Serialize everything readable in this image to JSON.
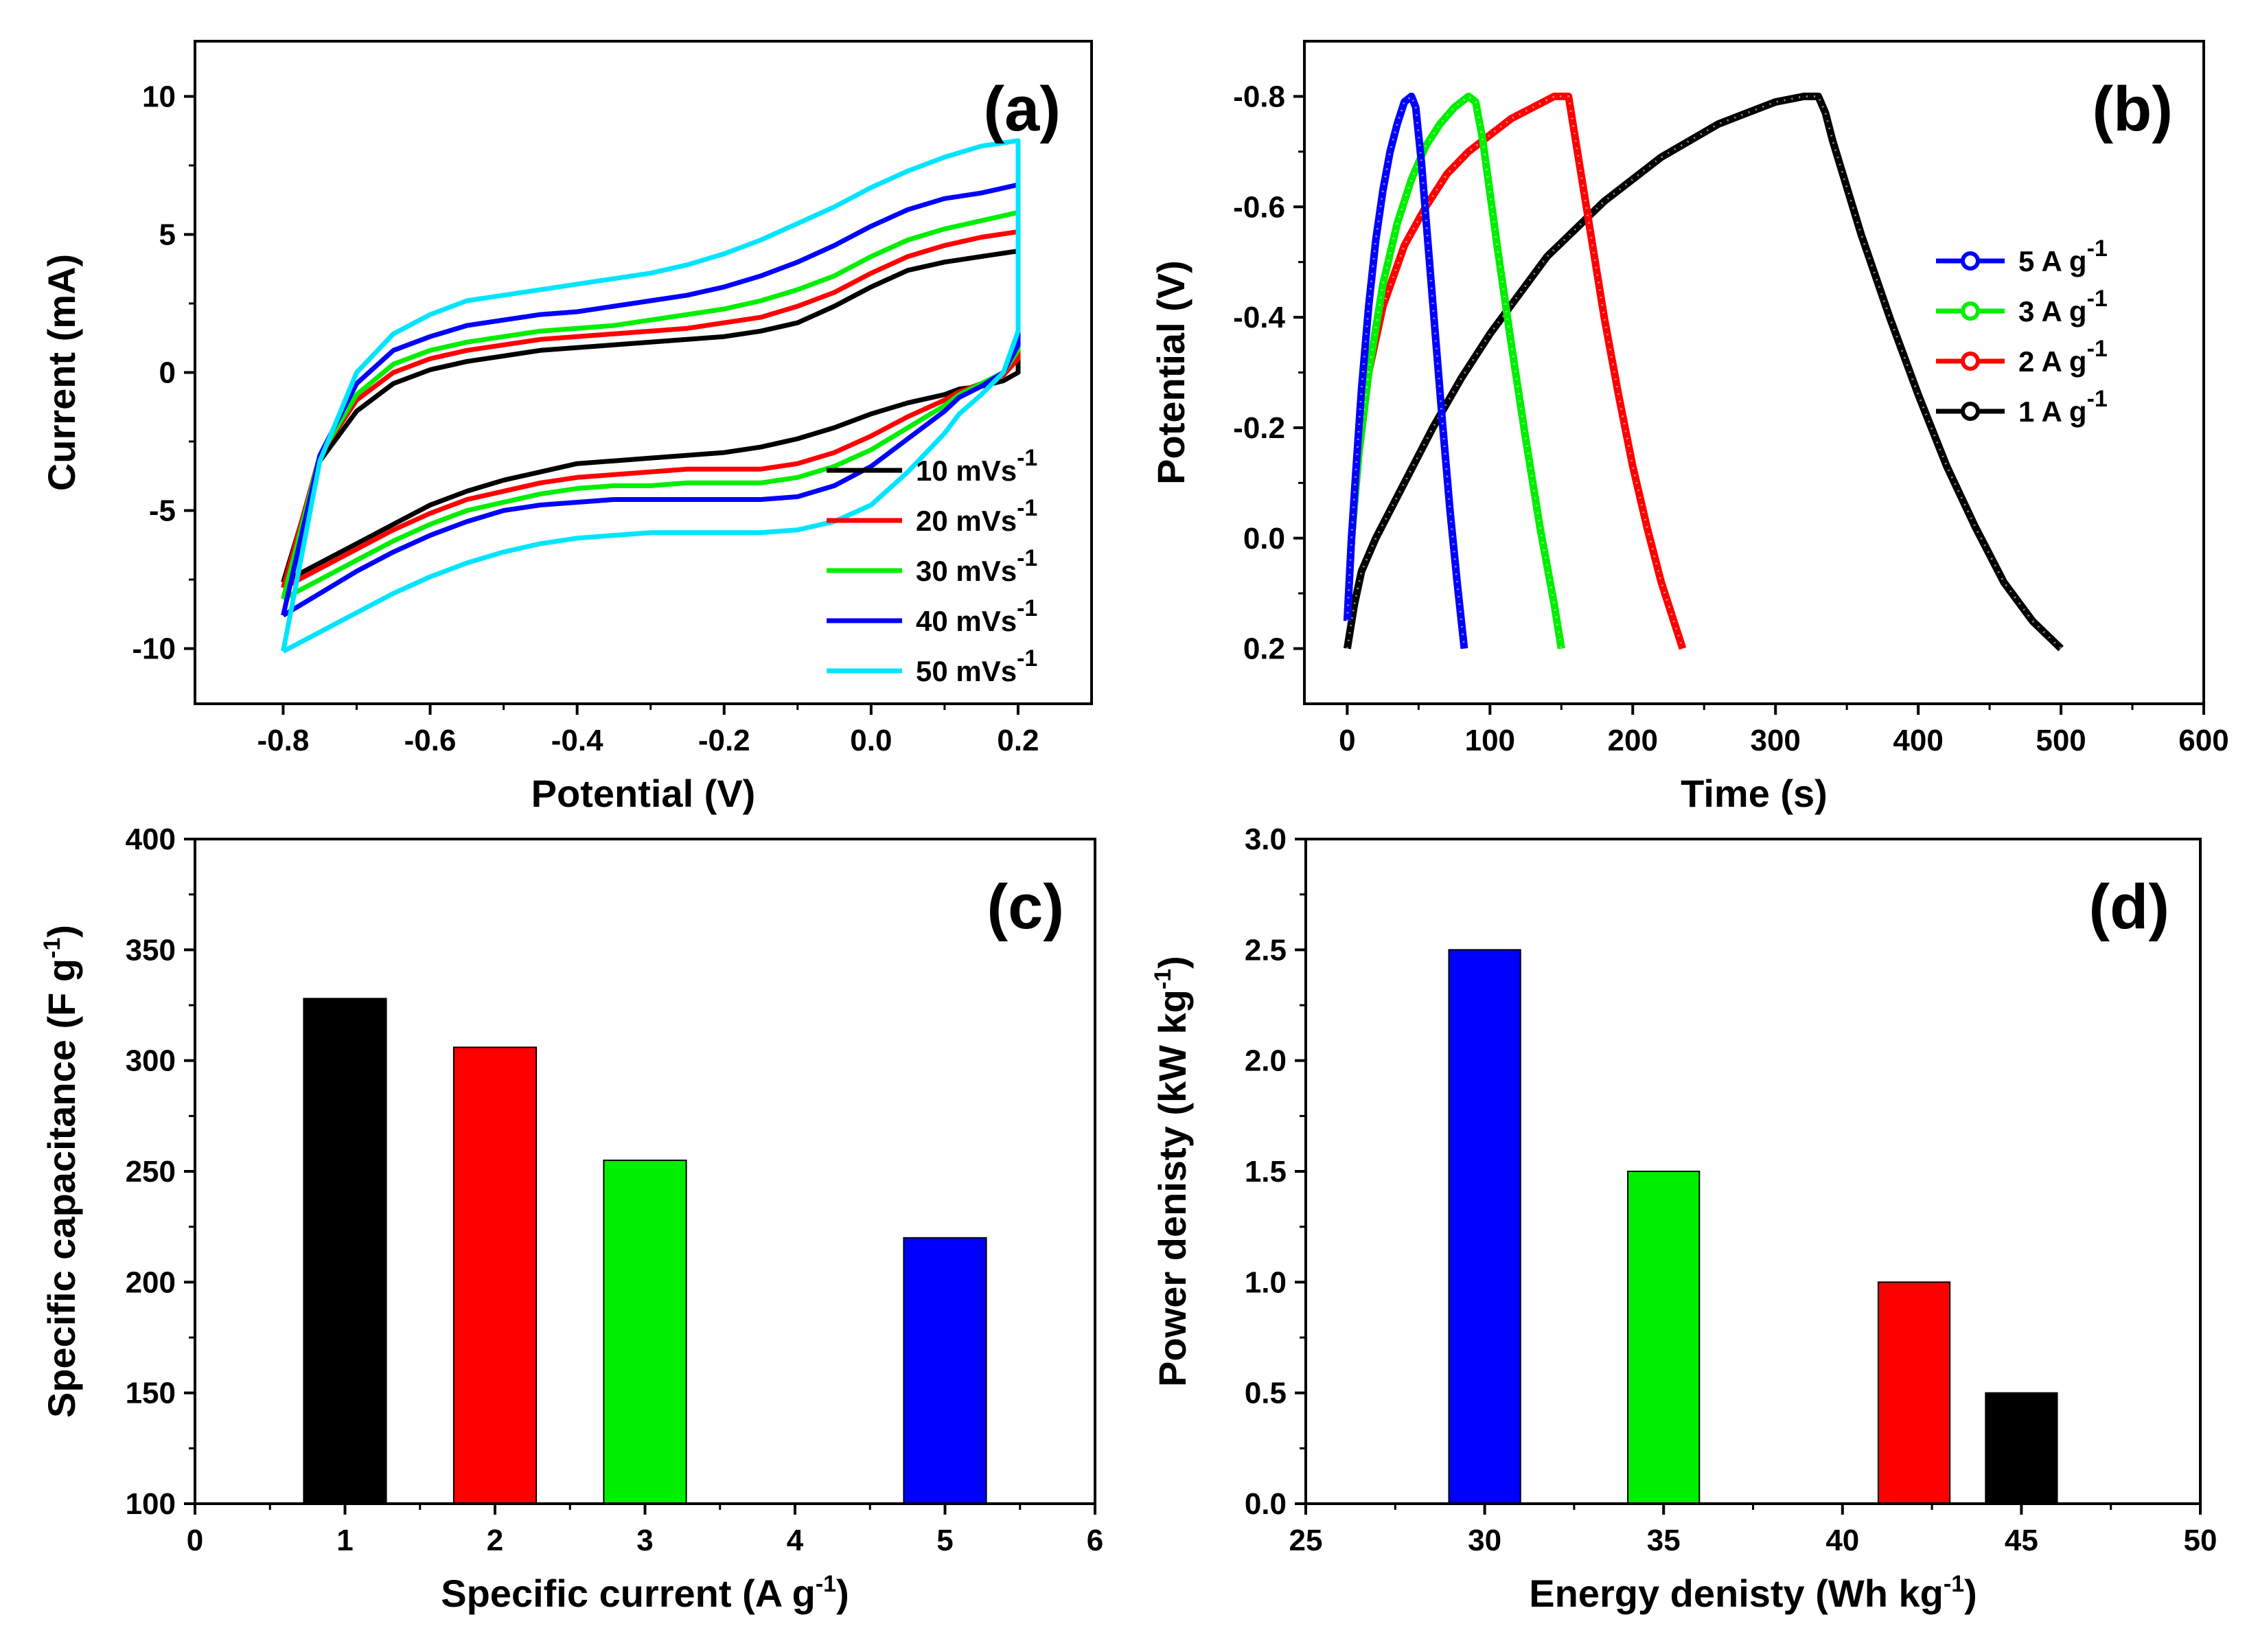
{
  "chart_data": [
    {
      "id": "a",
      "type": "line",
      "panel_label": "(a)",
      "xlabel": "Potential (V)",
      "ylabel": "Current (mA)",
      "xlim": [
        -0.92,
        0.3
      ],
      "ylim": [
        -12.0,
        12.0
      ],
      "xticks": [
        -0.8,
        -0.6,
        -0.4,
        -0.2,
        0.0,
        0.2
      ],
      "xtick_labels": [
        "-0.8",
        "-0.6",
        "-0.4",
        "-0.2",
        "0.0",
        "0.2"
      ],
      "yticks": [
        -10,
        -5,
        0,
        5,
        10
      ],
      "ytick_labels": [
        "-10",
        "-5",
        "0",
        "5",
        "10"
      ],
      "legend_position": "bottom-right",
      "series": [
        {
          "name": "10 mVs",
          "sup": "-1",
          "color": "#000000",
          "x": [
            -0.8,
            -0.75,
            -0.7,
            -0.65,
            -0.6,
            -0.55,
            -0.5,
            -0.45,
            -0.4,
            -0.35,
            -0.3,
            -0.25,
            -0.2,
            -0.15,
            -0.1,
            -0.05,
            0.0,
            0.05,
            0.1,
            0.15,
            0.2,
            0.2,
            0.2,
            0.18,
            0.15,
            0.12,
            0.1,
            0.05,
            0.0,
            -0.05,
            -0.1,
            -0.15,
            -0.2,
            -0.25,
            -0.3,
            -0.35,
            -0.4,
            -0.45,
            -0.5,
            -0.55,
            -0.6,
            -0.65,
            -0.7,
            -0.75,
            -0.8,
            -0.8
          ],
          "y": [
            -7.6,
            -3.2,
            -1.4,
            -0.4,
            0.1,
            0.4,
            0.6,
            0.8,
            0.9,
            1.0,
            1.1,
            1.2,
            1.3,
            1.5,
            1.8,
            2.4,
            3.1,
            3.7,
            4.0,
            4.2,
            4.4,
            2.0,
            0.0,
            -0.3,
            -0.5,
            -0.6,
            -0.8,
            -1.1,
            -1.5,
            -2.0,
            -2.4,
            -2.7,
            -2.9,
            -3.0,
            -3.1,
            -3.2,
            -3.3,
            -3.6,
            -3.9,
            -4.3,
            -4.8,
            -5.5,
            -6.2,
            -6.9,
            -7.6,
            -7.6
          ]
        },
        {
          "name": "20 mVs",
          "sup": "-1",
          "color": "#ff0000",
          "x": [
            -0.8,
            -0.75,
            -0.7,
            -0.65,
            -0.6,
            -0.55,
            -0.5,
            -0.45,
            -0.4,
            -0.35,
            -0.3,
            -0.25,
            -0.2,
            -0.15,
            -0.1,
            -0.05,
            0.0,
            0.05,
            0.1,
            0.15,
            0.2,
            0.2,
            0.2,
            0.18,
            0.15,
            0.12,
            0.1,
            0.05,
            0.0,
            -0.05,
            -0.1,
            -0.15,
            -0.2,
            -0.25,
            -0.3,
            -0.35,
            -0.4,
            -0.45,
            -0.5,
            -0.55,
            -0.6,
            -0.65,
            -0.7,
            -0.75,
            -0.8,
            -0.8
          ],
          "y": [
            -7.8,
            -3.0,
            -1.0,
            0.0,
            0.5,
            0.8,
            1.0,
            1.2,
            1.3,
            1.4,
            1.5,
            1.6,
            1.8,
            2.0,
            2.4,
            2.9,
            3.6,
            4.2,
            4.6,
            4.9,
            5.1,
            2.5,
            0.5,
            -0.1,
            -0.4,
            -0.7,
            -1.0,
            -1.6,
            -2.3,
            -2.9,
            -3.3,
            -3.5,
            -3.5,
            -3.5,
            -3.6,
            -3.7,
            -3.8,
            -4.0,
            -4.3,
            -4.6,
            -5.1,
            -5.7,
            -6.4,
            -7.1,
            -7.8,
            -7.8
          ]
        },
        {
          "name": "30 mVs",
          "sup": "-1",
          "color": "#00ee00",
          "x": [
            -0.8,
            -0.75,
            -0.7,
            -0.65,
            -0.6,
            -0.55,
            -0.5,
            -0.45,
            -0.4,
            -0.35,
            -0.3,
            -0.25,
            -0.2,
            -0.15,
            -0.1,
            -0.05,
            0.0,
            0.05,
            0.1,
            0.15,
            0.2,
            0.2,
            0.2,
            0.18,
            0.15,
            0.12,
            0.1,
            0.05,
            0.0,
            -0.05,
            -0.1,
            -0.15,
            -0.2,
            -0.25,
            -0.3,
            -0.35,
            -0.4,
            -0.45,
            -0.5,
            -0.55,
            -0.6,
            -0.65,
            -0.7,
            -0.75,
            -0.8,
            -0.8
          ],
          "y": [
            -8.2,
            -3.0,
            -0.8,
            0.3,
            0.8,
            1.1,
            1.3,
            1.5,
            1.6,
            1.7,
            1.9,
            2.1,
            2.3,
            2.6,
            3.0,
            3.5,
            4.2,
            4.8,
            5.2,
            5.5,
            5.8,
            3.0,
            0.8,
            0.0,
            -0.4,
            -0.8,
            -1.2,
            -2.0,
            -2.8,
            -3.4,
            -3.8,
            -4.0,
            -4.0,
            -4.0,
            -4.1,
            -4.1,
            -4.2,
            -4.4,
            -4.7,
            -5.0,
            -5.5,
            -6.1,
            -6.8,
            -7.5,
            -8.2,
            -8.2
          ]
        },
        {
          "name": "40 mVs",
          "sup": "-1",
          "color": "#0000ff",
          "x": [
            -0.8,
            -0.75,
            -0.7,
            -0.65,
            -0.6,
            -0.55,
            -0.5,
            -0.45,
            -0.4,
            -0.35,
            -0.3,
            -0.25,
            -0.2,
            -0.15,
            -0.1,
            -0.05,
            0.0,
            0.05,
            0.1,
            0.15,
            0.2,
            0.2,
            0.2,
            0.18,
            0.15,
            0.12,
            0.1,
            0.05,
            0.0,
            -0.05,
            -0.1,
            -0.15,
            -0.2,
            -0.25,
            -0.3,
            -0.35,
            -0.4,
            -0.45,
            -0.5,
            -0.55,
            -0.6,
            -0.65,
            -0.7,
            -0.75,
            -0.8,
            -0.8
          ],
          "y": [
            -8.8,
            -3.0,
            -0.4,
            0.8,
            1.3,
            1.7,
            1.9,
            2.1,
            2.2,
            2.4,
            2.6,
            2.8,
            3.1,
            3.5,
            4.0,
            4.6,
            5.3,
            5.9,
            6.3,
            6.5,
            6.8,
            3.6,
            1.0,
            0.0,
            -0.5,
            -0.9,
            -1.4,
            -2.4,
            -3.4,
            -4.1,
            -4.5,
            -4.6,
            -4.6,
            -4.6,
            -4.6,
            -4.6,
            -4.7,
            -4.8,
            -5.0,
            -5.4,
            -5.9,
            -6.5,
            -7.2,
            -8.0,
            -8.8,
            -8.8
          ]
        },
        {
          "name": "50 mVs",
          "sup": "-1",
          "color": "#00e5ff",
          "x": [
            -0.8,
            -0.75,
            -0.7,
            -0.65,
            -0.6,
            -0.55,
            -0.5,
            -0.45,
            -0.4,
            -0.35,
            -0.3,
            -0.25,
            -0.2,
            -0.15,
            -0.1,
            -0.05,
            0.0,
            0.05,
            0.1,
            0.15,
            0.2,
            0.2,
            0.2,
            0.18,
            0.15,
            0.12,
            0.1,
            0.05,
            0.0,
            -0.05,
            -0.1,
            -0.15,
            -0.2,
            -0.25,
            -0.3,
            -0.35,
            -0.4,
            -0.45,
            -0.5,
            -0.55,
            -0.6,
            -0.65,
            -0.7,
            -0.75,
            -0.8,
            -0.8
          ],
          "y": [
            -10.1,
            -3.2,
            0.0,
            1.4,
            2.1,
            2.6,
            2.8,
            3.0,
            3.2,
            3.4,
            3.6,
            3.9,
            4.3,
            4.8,
            5.4,
            6.0,
            6.7,
            7.3,
            7.8,
            8.2,
            8.4,
            4.5,
            1.5,
            0.0,
            -0.8,
            -1.5,
            -2.2,
            -3.6,
            -4.8,
            -5.4,
            -5.7,
            -5.8,
            -5.8,
            -5.8,
            -5.8,
            -5.9,
            -6.0,
            -6.2,
            -6.5,
            -6.9,
            -7.4,
            -8.0,
            -8.7,
            -9.4,
            -10.1,
            -10.1
          ]
        }
      ]
    },
    {
      "id": "b",
      "type": "line",
      "panel_label": "(b)",
      "xlabel": "Time (s)",
      "ylabel": "Potential (V)",
      "xlim": [
        -30,
        600
      ],
      "ylim": [
        0.3,
        -0.9
      ],
      "xticks": [
        0,
        100,
        200,
        300,
        400,
        500,
        600
      ],
      "xtick_labels": [
        "0",
        "100",
        "200",
        "300",
        "400",
        "500",
        "600"
      ],
      "yticks": [
        -0.8,
        -0.6,
        -0.4,
        -0.2,
        0.0,
        0.2
      ],
      "ytick_labels": [
        "-0.8",
        "-0.6",
        "-0.4",
        "-0.2",
        "0.0",
        "0.2"
      ],
      "legend_position": "top-right",
      "series": [
        {
          "name": "1 A g",
          "sup": "-1",
          "color": "#000000",
          "x": [
            0,
            5,
            10,
            20,
            40,
            60,
            80,
            100,
            120,
            140,
            160,
            180,
            200,
            220,
            240,
            260,
            280,
            300,
            320,
            330,
            335,
            340,
            360,
            380,
            400,
            420,
            440,
            460,
            480,
            500
          ],
          "y": [
            0.2,
            0.12,
            0.06,
            0.0,
            -0.1,
            -0.2,
            -0.29,
            -0.37,
            -0.44,
            -0.51,
            -0.56,
            -0.61,
            -0.65,
            -0.69,
            -0.72,
            -0.75,
            -0.77,
            -0.79,
            -0.8,
            -0.8,
            -0.77,
            -0.72,
            -0.55,
            -0.4,
            -0.26,
            -0.13,
            -0.02,
            0.08,
            0.15,
            0.2
          ]
        },
        {
          "name": "2 A g",
          "sup": "-1",
          "color": "#ff0000",
          "x": [
            0,
            3,
            8,
            15,
            25,
            40,
            55,
            70,
            85,
            100,
            115,
            130,
            145,
            155,
            160,
            170,
            180,
            190,
            200,
            210,
            220,
            230,
            235
          ],
          "y": [
            0.15,
            0.0,
            -0.15,
            -0.3,
            -0.42,
            -0.53,
            -0.6,
            -0.66,
            -0.7,
            -0.73,
            -0.76,
            -0.78,
            -0.8,
            -0.8,
            -0.72,
            -0.56,
            -0.4,
            -0.26,
            -0.13,
            -0.02,
            0.08,
            0.16,
            0.2
          ]
        },
        {
          "name": "3 A g",
          "sup": "-1",
          "color": "#00ee00",
          "x": [
            0,
            3,
            8,
            15,
            25,
            35,
            45,
            55,
            65,
            75,
            85,
            90,
            95,
            105,
            115,
            125,
            135,
            145,
            150
          ],
          "y": [
            0.15,
            0.0,
            -0.15,
            -0.3,
            -0.46,
            -0.57,
            -0.65,
            -0.71,
            -0.75,
            -0.78,
            -0.8,
            -0.79,
            -0.72,
            -0.53,
            -0.35,
            -0.18,
            -0.02,
            0.12,
            0.2
          ]
        },
        {
          "name": "5 A g",
          "sup": "-1",
          "color": "#0000ff",
          "x": [
            0,
            3,
            6,
            10,
            15,
            20,
            25,
            30,
            35,
            40,
            45,
            48,
            52,
            57,
            62,
            67,
            72,
            77,
            82
          ],
          "y": [
            0.15,
            0.0,
            -0.12,
            -0.27,
            -0.42,
            -0.54,
            -0.63,
            -0.7,
            -0.75,
            -0.79,
            -0.8,
            -0.78,
            -0.68,
            -0.52,
            -0.36,
            -0.2,
            -0.05,
            0.08,
            0.2
          ]
        }
      ]
    },
    {
      "id": "c",
      "type": "bar",
      "panel_label": "(c)",
      "xlabel": "Specific current (A g",
      "xlabel_sup": "-1",
      "xlabel_end": ")",
      "ylabel": "Specific capacitance (F g",
      "ylabel_sup": "-1",
      "ylabel_end": ")",
      "xlim": [
        0,
        6
      ],
      "ylim": [
        100,
        400
      ],
      "xticks": [
        0,
        1,
        2,
        3,
        4,
        5,
        6
      ],
      "xtick_labels": [
        "0",
        "1",
        "2",
        "3",
        "4",
        "5",
        "6"
      ],
      "yticks": [
        100,
        150,
        200,
        250,
        300,
        350,
        400
      ],
      "ytick_labels": [
        "100",
        "150",
        "200",
        "250",
        "300",
        "350",
        "400"
      ],
      "x": [
        1,
        2,
        3,
        5
      ],
      "values": [
        328,
        306,
        255,
        220
      ],
      "colors": [
        "#000000",
        "#ff0000",
        "#00ee00",
        "#0000ff"
      ],
      "bar_width": 0.55
    },
    {
      "id": "d",
      "type": "bar",
      "panel_label": "(d)",
      "xlabel": "Energy denisty (Wh kg",
      "xlabel_sup": "-1",
      "xlabel_end": ")",
      "ylabel": "Power denisty (kW kg",
      "ylabel_sup": "-1",
      "ylabel_end": ")",
      "xlim": [
        25,
        50
      ],
      "ylim": [
        0.0,
        3.0
      ],
      "xticks": [
        25,
        30,
        35,
        40,
        45,
        50
      ],
      "xtick_labels": [
        "25",
        "30",
        "35",
        "40",
        "45",
        "50"
      ],
      "yticks": [
        0.0,
        0.5,
        1.0,
        1.5,
        2.0,
        2.5,
        3.0
      ],
      "ytick_labels": [
        "0.0",
        "0.5",
        "1.0",
        "1.5",
        "2.0",
        "2.5",
        "3.0"
      ],
      "x": [
        30,
        35,
        42,
        45
      ],
      "values": [
        2.5,
        1.5,
        1.0,
        0.5
      ],
      "colors": [
        "#0000ff",
        "#00ee00",
        "#ff0000",
        "#000000"
      ],
      "bar_width": 2.0
    }
  ]
}
